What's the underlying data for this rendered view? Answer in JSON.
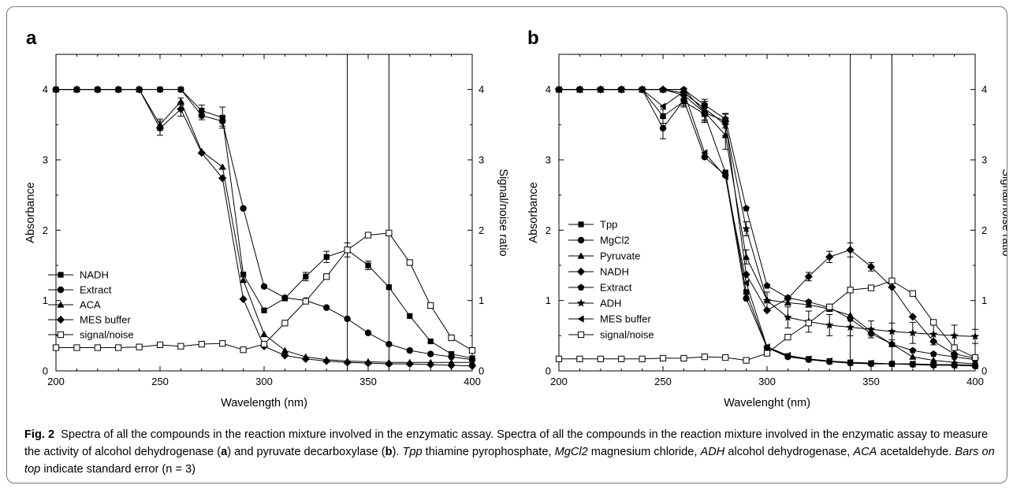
{
  "figure": {
    "caption": {
      "label": "Fig. 2",
      "text1": "Spectra of all the compounds in the reaction mixture involved in the enzymatic assay. Spectra of all the compounds in the reaction mixture involved in the enzymatic assay to measure the activity of alcohol dehydrogenase (",
      "bold_a": "a",
      "text2": ") and pyruvate decarboxylase (",
      "bold_b": "b",
      "text3": "). ",
      "abbr_tpp": "Tpp",
      "text4": " thiamine pyrophosphate, ",
      "abbr_mgcl2": "MgCl2",
      "text5": " magnesium chloride, ",
      "abbr_adh": "ADH",
      "text6": " alcohol dehydrogenase, ",
      "abbr_aca": "ACA",
      "text7": " acetaldehyde. ",
      "bars_note": "Bars on top",
      "text8": " indicate standard error (n = 3)"
    }
  },
  "chart_data": [
    {
      "panel_label": "a",
      "type": "line",
      "xlabel": "Wavelength (nm)",
      "ylabel": "Absorbance",
      "y2label": "Signal/noise ratio",
      "xlim": [
        200,
        400
      ],
      "ylim": [
        0,
        4.5
      ],
      "y2lim": [
        0,
        4.5
      ],
      "xticks": [
        200,
        250,
        300,
        350,
        400
      ],
      "yticks": [
        0,
        1,
        2,
        3,
        4
      ],
      "vlines": [
        340,
        360
      ],
      "legend_position": "bottom-left",
      "x": [
        200,
        210,
        220,
        230,
        240,
        250,
        260,
        270,
        280,
        290,
        300,
        310,
        320,
        330,
        340,
        350,
        360,
        370,
        380,
        390,
        400
      ],
      "series": [
        {
          "name": "NADH",
          "marker": "square",
          "axis": "left",
          "values": [
            4,
            4,
            4,
            4,
            4,
            4,
            4,
            3.7,
            3.6,
            1.37,
            0.86,
            1.03,
            1.34,
            1.62,
            1.72,
            1.5,
            1.19,
            0.78,
            0.42,
            0.24,
            0.18
          ],
          "errors": [
            0,
            0,
            0,
            0,
            0,
            0,
            0,
            0.08,
            0.15,
            0,
            0,
            0,
            0.06,
            0.08,
            0.1,
            0.06,
            0,
            0,
            0,
            0,
            0
          ]
        },
        {
          "name": "Extract",
          "marker": "circle",
          "axis": "left",
          "values": [
            4,
            4,
            4,
            4,
            4,
            4,
            4,
            3.63,
            3.55,
            2.31,
            1.2,
            1.04,
            1.0,
            0.9,
            0.74,
            0.54,
            0.38,
            0.29,
            0.24,
            0.2,
            0.16
          ],
          "errors": [
            0,
            0,
            0,
            0,
            0,
            0,
            0,
            0.06,
            0.07,
            0,
            0,
            0,
            0,
            0,
            0,
            0,
            0,
            0,
            0,
            0,
            0
          ]
        },
        {
          "name": "ACA",
          "marker": "triangle",
          "axis": "left",
          "values": [
            4,
            4,
            4,
            4,
            4,
            3.5,
            3.83,
            3.12,
            2.9,
            1.29,
            0.52,
            0.29,
            0.2,
            0.16,
            0.14,
            0.13,
            0.12,
            0.12,
            0.12,
            0.12,
            0.12
          ],
          "errors": [
            0,
            0,
            0,
            0,
            0,
            0.08,
            0.05,
            0,
            0,
            0,
            0,
            0,
            0,
            0,
            0,
            0,
            0,
            0,
            0,
            0,
            0
          ]
        },
        {
          "name": "MES buffer",
          "marker": "diamond",
          "axis": "left",
          "values": [
            4,
            4,
            4,
            4,
            4,
            3.45,
            3.72,
            3.1,
            2.74,
            1.02,
            0.35,
            0.22,
            0.17,
            0.14,
            0.12,
            0.11,
            0.1,
            0.1,
            0.09,
            0.08,
            0.07
          ],
          "errors": [
            0,
            0,
            0,
            0,
            0,
            0.1,
            0.1,
            0,
            0,
            0,
            0,
            0,
            0,
            0,
            0,
            0,
            0,
            0,
            0,
            0,
            0
          ]
        },
        {
          "name": "signal/noise",
          "marker": "open-square",
          "axis": "right",
          "values": [
            0.33,
            0.33,
            0.33,
            0.33,
            0.34,
            0.37,
            0.35,
            0.38,
            0.39,
            0.3,
            0.38,
            0.68,
            0.99,
            1.34,
            1.72,
            1.93,
            1.96,
            1.54,
            0.93,
            0.47,
            0.29
          ],
          "errors": [
            0,
            0,
            0,
            0,
            0,
            0,
            0,
            0,
            0,
            0,
            0,
            0,
            0,
            0,
            0,
            0,
            0,
            0,
            0,
            0,
            0
          ]
        }
      ]
    },
    {
      "panel_label": "b",
      "type": "line",
      "xlabel": "Wavelenght (nm)",
      "ylabel": "Absorbance",
      "y2label": "Signal/noise ratio",
      "xlim": [
        200,
        400
      ],
      "ylim": [
        0,
        4.5
      ],
      "y2lim": [
        0,
        4.5
      ],
      "xticks": [
        200,
        250,
        300,
        350,
        400
      ],
      "yticks": [
        0,
        1,
        2,
        3,
        4
      ],
      "vlines": [
        340,
        360
      ],
      "legend_position": "bottom-left",
      "x": [
        200,
        210,
        220,
        230,
        240,
        250,
        260,
        270,
        280,
        290,
        300,
        310,
        320,
        330,
        340,
        350,
        360,
        370,
        380,
        390,
        400
      ],
      "series": [
        {
          "name": "Tpp",
          "marker": "square",
          "axis": "left",
          "values": [
            4,
            4,
            4,
            4,
            4,
            3.62,
            3.83,
            3.65,
            2.82,
            1.12,
            0.33,
            0.21,
            0.17,
            0.14,
            0.12,
            0.11,
            0.1,
            0.1,
            0.09,
            0.09,
            0.08
          ],
          "errors": [
            0,
            0,
            0,
            0,
            0,
            0.1,
            0.08,
            0.1,
            0,
            0,
            0,
            0,
            0,
            0,
            0,
            0,
            0,
            0,
            0,
            0,
            0
          ]
        },
        {
          "name": "MgCl2",
          "marker": "circle",
          "axis": "left",
          "values": [
            4,
            4,
            4,
            4,
            4,
            3.45,
            3.85,
            3.04,
            2.78,
            1.03,
            0.33,
            0.2,
            0.16,
            0.13,
            0.11,
            0.1,
            0.1,
            0.09,
            0.08,
            0.08,
            0.07
          ],
          "errors": [
            0,
            0,
            0,
            0,
            0,
            0.15,
            0.08,
            0,
            0,
            0,
            0,
            0,
            0,
            0,
            0,
            0,
            0,
            0,
            0,
            0,
            0
          ]
        },
        {
          "name": "Pyruvate",
          "marker": "triangle",
          "axis": "left",
          "values": [
            4,
            4,
            4,
            4,
            4,
            4,
            4,
            3.68,
            3.35,
            1.62,
            1.01,
            0.97,
            0.94,
            0.88,
            0.79,
            0.56,
            0.38,
            0.2,
            0.15,
            0.12,
            0.1
          ],
          "errors": [
            0,
            0,
            0,
            0,
            0,
            0,
            0,
            0.15,
            0.2,
            0.1,
            0,
            0,
            0,
            0,
            0,
            0,
            0,
            0,
            0,
            0,
            0
          ]
        },
        {
          "name": "NADH",
          "marker": "diamond",
          "axis": "left",
          "values": [
            4,
            4,
            4,
            4,
            4,
            4,
            3.92,
            3.67,
            3.55,
            1.37,
            0.86,
            1.03,
            1.34,
            1.62,
            1.72,
            1.48,
            1.19,
            0.77,
            0.42,
            0.24,
            0.18
          ],
          "errors": [
            0,
            0,
            0,
            0,
            0,
            0,
            0.06,
            0.1,
            0.1,
            0,
            0,
            0,
            0.06,
            0.08,
            0.1,
            0.06,
            0,
            0,
            0,
            0,
            0
          ]
        },
        {
          "name": "Extract",
          "marker": "pentagon",
          "axis": "left",
          "values": [
            4,
            4,
            4,
            4,
            4,
            4,
            4,
            3.78,
            3.58,
            2.31,
            1.21,
            1.04,
            0.98,
            0.9,
            0.74,
            0.53,
            0.38,
            0.29,
            0.24,
            0.2,
            0.16
          ],
          "errors": [
            0,
            0,
            0,
            0,
            0,
            0,
            0,
            0.08,
            0.08,
            0,
            0,
            0,
            0,
            0,
            0,
            0,
            0,
            0,
            0,
            0,
            0
          ]
        },
        {
          "name": "ADH",
          "marker": "star",
          "axis": "left",
          "values": [
            4,
            4,
            4,
            4,
            4,
            4,
            3.95,
            3.73,
            3.5,
            2.02,
            1.0,
            0.76,
            0.7,
            0.65,
            0.62,
            0.59,
            0.56,
            0.54,
            0.52,
            0.5,
            0.49
          ],
          "errors": [
            0,
            0,
            0,
            0,
            0,
            0,
            0,
            0.1,
            0.15,
            0.1,
            0.12,
            0.15,
            0.15,
            0.15,
            0.12,
            0.12,
            0.12,
            0.15,
            0.15,
            0.15,
            0.1
          ]
        },
        {
          "name": "MES buffer",
          "marker": "left-triangle",
          "axis": "left",
          "values": [
            4,
            4,
            4,
            4,
            4,
            3.76,
            3.97,
            3.1,
            2.76,
            1.25,
            0.34,
            0.22,
            0.17,
            0.14,
            0.12,
            0.11,
            0.1,
            0.1,
            0.09,
            0.08,
            0.07
          ],
          "errors": [
            0,
            0,
            0,
            0,
            0,
            0,
            0,
            0,
            0,
            0,
            0,
            0,
            0,
            0,
            0,
            0,
            0,
            0,
            0,
            0,
            0
          ]
        },
        {
          "name": "signal/noise",
          "marker": "open-square",
          "axis": "right",
          "values": [
            0.17,
            0.17,
            0.17,
            0.17,
            0.17,
            0.18,
            0.18,
            0.2,
            0.19,
            0.15,
            0.25,
            0.48,
            0.68,
            0.91,
            1.15,
            1.18,
            1.28,
            1.1,
            0.69,
            0.33,
            0.19
          ],
          "errors": [
            0,
            0,
            0,
            0,
            0,
            0,
            0,
            0,
            0,
            0,
            0,
            0,
            0,
            0,
            0,
            0,
            0,
            0,
            0,
            0,
            0
          ]
        }
      ]
    }
  ]
}
